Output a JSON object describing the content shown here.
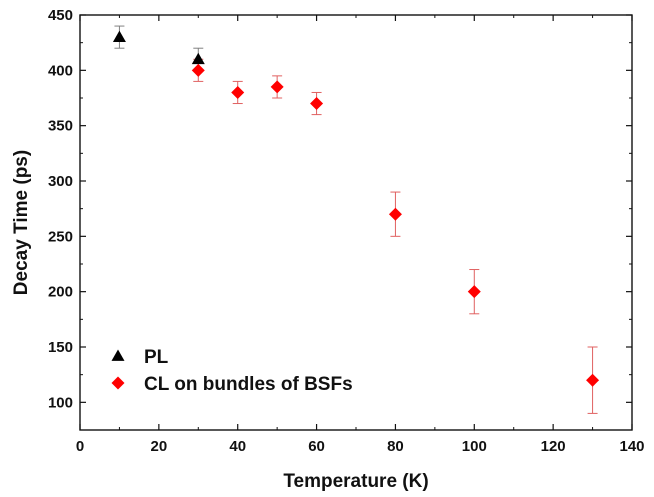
{
  "chart_data": {
    "type": "scatter",
    "title": "",
    "xlabel": "Temperature (K)",
    "ylabel": "Decay Time (ps)",
    "xlim": [
      0,
      140
    ],
    "ylim": [
      75,
      450
    ],
    "xticks": [
      0,
      20,
      40,
      60,
      80,
      100,
      120,
      140
    ],
    "yticks": [
      100,
      150,
      200,
      250,
      300,
      350,
      400,
      450
    ],
    "grid": false,
    "legend_position": "bottom-left",
    "series": [
      {
        "name": "PL",
        "marker": "triangle",
        "color": "#000000",
        "error_color": "#808080",
        "points": [
          {
            "x": 10,
            "y": 430,
            "err": 10
          },
          {
            "x": 30,
            "y": 410,
            "err": 10
          }
        ]
      },
      {
        "name": "CL on bundles of BSFs",
        "marker": "diamond",
        "color": "#ff0000",
        "error_color": "#e06060",
        "points": [
          {
            "x": 30,
            "y": 400,
            "err": 10
          },
          {
            "x": 40,
            "y": 380,
            "err": 10
          },
          {
            "x": 50,
            "y": 385,
            "err": 10
          },
          {
            "x": 60,
            "y": 370,
            "err": 10
          },
          {
            "x": 80,
            "y": 270,
            "err": 20
          },
          {
            "x": 100,
            "y": 200,
            "err": 20
          },
          {
            "x": 130,
            "y": 120,
            "err": 30
          }
        ]
      }
    ]
  }
}
